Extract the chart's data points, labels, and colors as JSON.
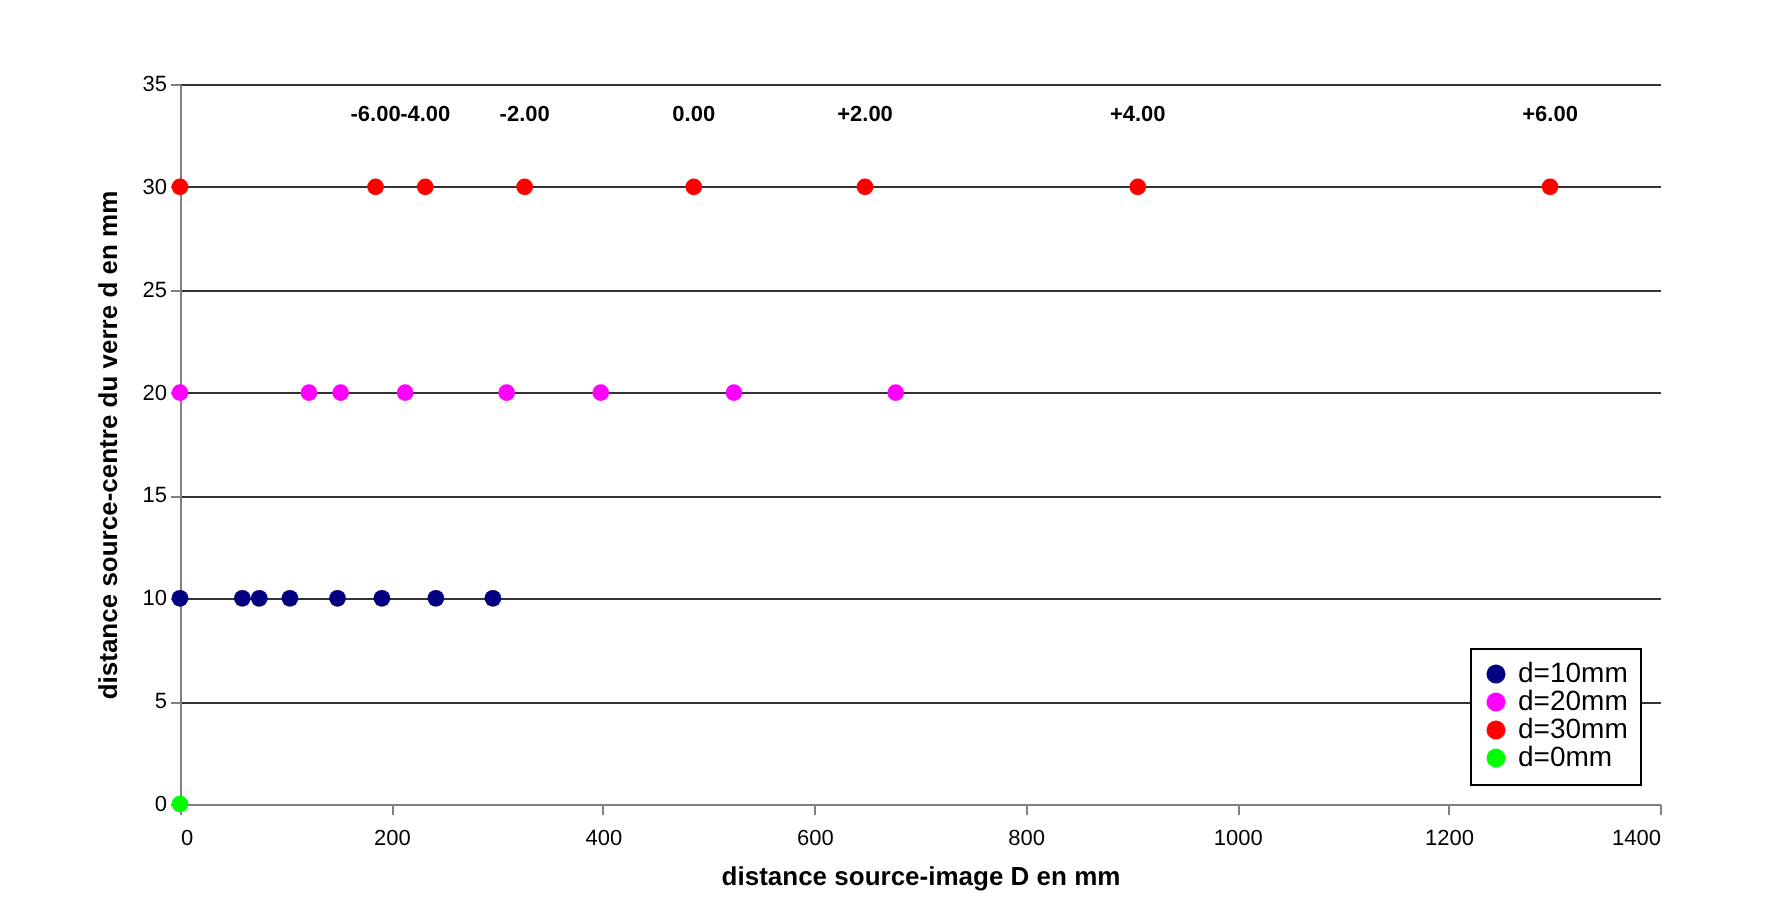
{
  "chart_data": {
    "type": "scatter",
    "xlabel": "distance source-image D en mm",
    "ylabel": "distance source-centre du verre d en mm",
    "xlim": [
      0,
      1400
    ],
    "xticks": [
      0,
      200,
      400,
      600,
      800,
      1000,
      1200,
      1400
    ],
    "ylim": [
      0,
      35
    ],
    "yticks": [
      0,
      5,
      10,
      15,
      20,
      25,
      30,
      35
    ],
    "grid": "y",
    "legend": "bottom right",
    "marker": "circle",
    "series": [
      {
        "name": "d=10mm",
        "color": "#000080",
        "x": [
          0,
          59,
          75,
          104,
          149,
          191,
          242,
          296
        ],
        "values": [
          10,
          10,
          10,
          10,
          10,
          10,
          10,
          10
        ]
      },
      {
        "name": "d=20mm",
        "color": "#ff00ff",
        "x": [
          0,
          122,
          152,
          213,
          309,
          398,
          524,
          677
        ],
        "values": [
          20,
          20,
          20,
          20,
          20,
          20,
          20,
          20
        ]
      },
      {
        "name": "d=30mm",
        "color": "#ff0000",
        "x": [
          0,
          185,
          232,
          326,
          486,
          648,
          906,
          1296
        ],
        "values": [
          30,
          30,
          30,
          30,
          30,
          30,
          30,
          30
        ]
      },
      {
        "name": "d=0mm",
        "color": "#00ff00",
        "x": [
          0
        ],
        "values": [
          0
        ]
      }
    ],
    "annotations": [
      {
        "text": "-6.00",
        "x": 185,
        "y": 30
      },
      {
        "text": "-4.00",
        "x": 232,
        "y": 30
      },
      {
        "text": "-2.00",
        "x": 326,
        "y": 30
      },
      {
        "text": "0.00",
        "x": 486,
        "y": 30
      },
      {
        "text": "+2.00",
        "x": 648,
        "y": 30
      },
      {
        "text": "+4.00",
        "x": 906,
        "y": 30
      },
      {
        "text": "+6.00",
        "x": 1296,
        "y": 30
      }
    ]
  }
}
